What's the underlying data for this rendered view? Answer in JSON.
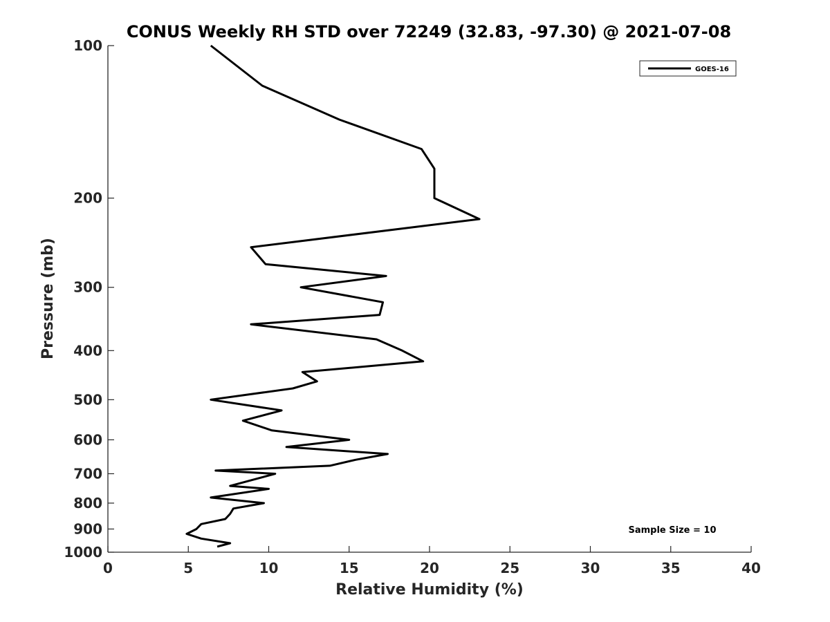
{
  "chart_data": {
    "type": "line",
    "title": "CONUS Weekly RH STD over 72249 (32.83, -97.30) @ 2021-07-08",
    "xlabel": "Relative Humidity (%)",
    "ylabel": "Pressure (mb)",
    "xlim": [
      0,
      40
    ],
    "ylim": [
      100,
      1000
    ],
    "y_scale": "log",
    "y_reversed": true,
    "xticks": [
      0,
      5,
      10,
      15,
      20,
      25,
      30,
      35,
      40
    ],
    "yticks": [
      100,
      200,
      300,
      400,
      500,
      600,
      700,
      800,
      900,
      1000
    ],
    "grid": false,
    "legend": {
      "position": "top-right",
      "entries": [
        "GOES-16"
      ]
    },
    "annotation": "Sample Size = 10",
    "series": [
      {
        "name": "GOES-16",
        "color": "#000000",
        "x": [
          6.4,
          9.6,
          14.4,
          19.5,
          20.3,
          20.3,
          23.1,
          8.9,
          9.8,
          17.3,
          12.0,
          17.1,
          16.9,
          8.9,
          16.7,
          18.3,
          19.6,
          12.1,
          13.0,
          11.5,
          6.4,
          10.8,
          8.4,
          10.2,
          15.0,
          11.1,
          17.4,
          15.4,
          13.8,
          6.7,
          10.4,
          7.6,
          10.0,
          6.4,
          9.7,
          7.8,
          7.6,
          7.3,
          5.8,
          5.5,
          4.9,
          5.8,
          7.6,
          6.8
        ],
        "y": [
          100,
          120,
          140,
          160,
          175,
          200,
          220,
          250,
          270,
          285,
          300,
          321,
          340,
          355,
          380,
          400,
          420,
          441,
          460,
          475,
          500,
          525,
          550,
          575,
          600,
          620,
          640,
          657,
          675,
          690,
          700,
          740,
          750,
          780,
          800,
          820,
          840,
          860,
          880,
          900,
          920,
          940,
          960,
          975
        ]
      }
    ]
  }
}
